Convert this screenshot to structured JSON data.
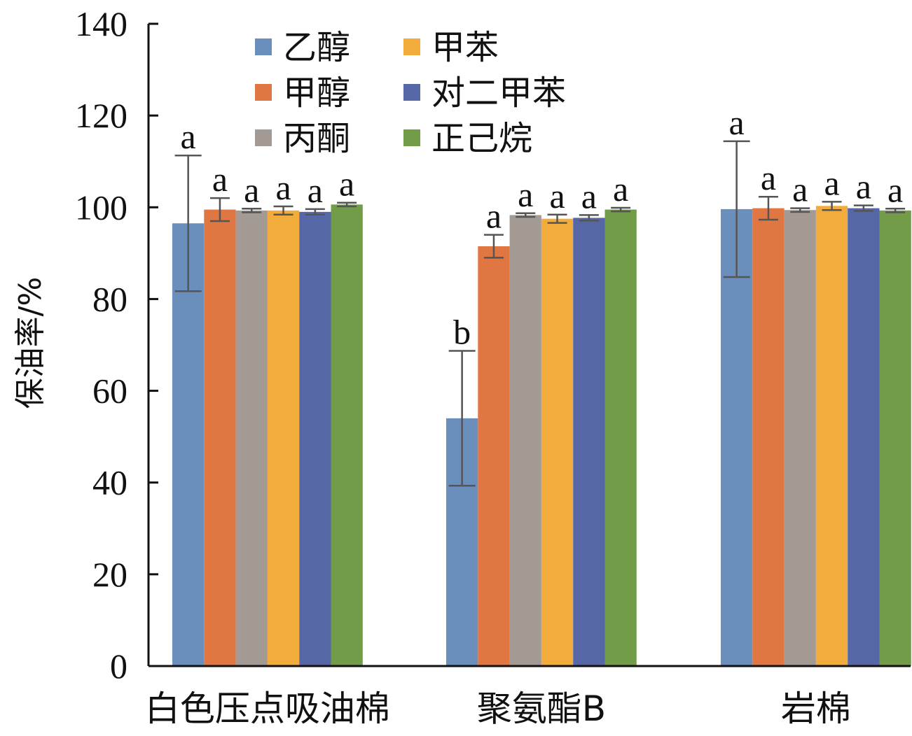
{
  "chart_data": {
    "type": "bar",
    "title": "",
    "xlabel": "",
    "ylabel": "保油率/%",
    "ylim": [
      0,
      140
    ],
    "yticks": [
      0,
      20,
      40,
      60,
      80,
      100,
      120,
      140
    ],
    "grid": false,
    "legend_position": "top-left",
    "categories": [
      "白色压点吸油棉",
      "聚氨酯B",
      "岩棉"
    ],
    "series": [
      {
        "name": "乙醇",
        "color": "#6b8fbd",
        "values": [
          96.5,
          54.0,
          99.6
        ],
        "errors": [
          14.8,
          14.7,
          14.8
        ],
        "labels": [
          "a",
          "b",
          "a"
        ]
      },
      {
        "name": "甲醇",
        "color": "#e07642",
        "values": [
          99.5,
          91.5,
          99.8
        ],
        "errors": [
          2.5,
          2.5,
          2.5
        ],
        "labels": [
          "a",
          "a",
          "a"
        ]
      },
      {
        "name": "丙酮",
        "color": "#a39a94",
        "values": [
          99.3,
          98.3,
          99.4
        ],
        "errors": [
          0.4,
          0.4,
          0.4
        ],
        "labels": [
          "a",
          "a",
          "a"
        ]
      },
      {
        "name": "甲苯",
        "color": "#f2ac3c",
        "values": [
          99.3,
          97.5,
          100.3
        ],
        "errors": [
          0.9,
          0.9,
          0.9
        ],
        "labels": [
          "a",
          "a",
          "a"
        ]
      },
      {
        "name": "对二甲苯",
        "color": "#5667a8",
        "values": [
          99.0,
          97.7,
          99.8
        ],
        "errors": [
          0.6,
          0.6,
          0.6
        ],
        "labels": [
          "a",
          "a",
          "a"
        ]
      },
      {
        "name": "正己烷",
        "color": "#739c49",
        "values": [
          100.6,
          99.5,
          99.3
        ],
        "errors": [
          0.4,
          0.4,
          0.4
        ],
        "labels": [
          "a",
          "a",
          "a"
        ]
      }
    ]
  }
}
